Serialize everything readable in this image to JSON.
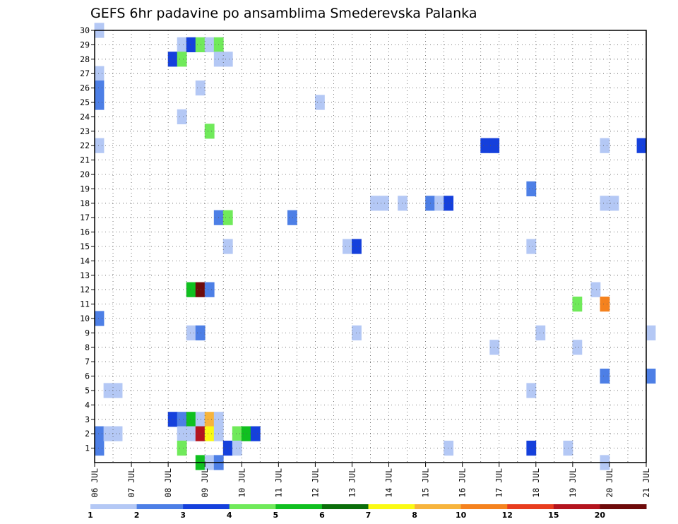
{
  "chart_data": {
    "type": "heatmap",
    "title": "GEFS 6hr padavine po ansamblima Smederevska Palanka",
    "xlabel": "",
    "ylabel": "",
    "x_ticks": [
      "06 JUL",
      "07 JUL",
      "08 JUL",
      "09 JUL",
      "10 JUL",
      "11 JUL",
      "12 JUL",
      "13 JUL",
      "14 JUL",
      "15 JUL",
      "16 JUL",
      "17 JUL",
      "18 JUL",
      "19 JUL",
      "20 JUL",
      "21 JUL"
    ],
    "x_range_days": [
      0,
      15
    ],
    "y_ticks": [
      1,
      2,
      3,
      4,
      5,
      6,
      7,
      8,
      9,
      10,
      11,
      12,
      13,
      14,
      15,
      16,
      17,
      18,
      19,
      20,
      21,
      22,
      23,
      24,
      25,
      26,
      27,
      28,
      29,
      30
    ],
    "y_range": [
      0,
      30
    ],
    "grid": true,
    "colorbar": {
      "labels": [
        "1",
        "2",
        "3",
        "4",
        "5",
        "6",
        "7",
        "8",
        "10",
        "12",
        "15",
        "20"
      ],
      "colors": [
        "#b4c8f5",
        "#4d7fe6",
        "#1540dc",
        "#70ea5a",
        "#10c020",
        "#0a6e0a",
        "#fafa14",
        "#f7b43c",
        "#f5821e",
        "#e83c1e",
        "#b4141e",
        "#6e0a0a"
      ]
    },
    "cells": [
      [
        0,
        30,
        0
      ],
      [
        0,
        27,
        0
      ],
      [
        0,
        26,
        1
      ],
      [
        0,
        25,
        1
      ],
      [
        0,
        22,
        0
      ],
      [
        0,
        10,
        1
      ],
      [
        0,
        2,
        1
      ],
      [
        0,
        1,
        1
      ],
      [
        0.25,
        5,
        0
      ],
      [
        0.5,
        5,
        0
      ],
      [
        0.25,
        2,
        0
      ],
      [
        0.5,
        2,
        0
      ],
      [
        2,
        28,
        2
      ],
      [
        2,
        3,
        2
      ],
      [
        2.25,
        29,
        0
      ],
      [
        2.25,
        28,
        3
      ],
      [
        2.25,
        24,
        0
      ],
      [
        2.25,
        3,
        1
      ],
      [
        2.25,
        2,
        0
      ],
      [
        2.25,
        1,
        3
      ],
      [
        2.5,
        29,
        2
      ],
      [
        2.5,
        12,
        4
      ],
      [
        2.5,
        3,
        4
      ],
      [
        2.5,
        2,
        0
      ],
      [
        2.5,
        9,
        0
      ],
      [
        2.75,
        29,
        3
      ],
      [
        2.75,
        26,
        0
      ],
      [
        2.75,
        12,
        11
      ],
      [
        2.75,
        9,
        1
      ],
      [
        2.75,
        3,
        0
      ],
      [
        2.75,
        2,
        10
      ],
      [
        2.75,
        0,
        4
      ],
      [
        3,
        29,
        0
      ],
      [
        3,
        23,
        3
      ],
      [
        3,
        12,
        1
      ],
      [
        3,
        3,
        7
      ],
      [
        3,
        2,
        6
      ],
      [
        3,
        0,
        0
      ],
      [
        3.25,
        29,
        3
      ],
      [
        3.25,
        28,
        0
      ],
      [
        3.25,
        17,
        1
      ],
      [
        3.25,
        3,
        0
      ],
      [
        3.25,
        2,
        0
      ],
      [
        3.25,
        0,
        1
      ],
      [
        3.5,
        28,
        0
      ],
      [
        3.5,
        17,
        3
      ],
      [
        3.5,
        15,
        0
      ],
      [
        3.5,
        1,
        2
      ],
      [
        3.75,
        2,
        3
      ],
      [
        3.75,
        1,
        0
      ],
      [
        4,
        2,
        4
      ],
      [
        4.25,
        2,
        2
      ],
      [
        5.25,
        17,
        1
      ],
      [
        6,
        25,
        0
      ],
      [
        6.75,
        15,
        0
      ],
      [
        7,
        15,
        2
      ],
      [
        7,
        9,
        0
      ],
      [
        7.5,
        18,
        0
      ],
      [
        7.75,
        18,
        0
      ],
      [
        8.25,
        18,
        0
      ],
      [
        9,
        18,
        1
      ],
      [
        9.25,
        18,
        0
      ],
      [
        9.5,
        18,
        2
      ],
      [
        9.5,
        1,
        0
      ],
      [
        10.5,
        22,
        2
      ],
      [
        10.75,
        22,
        2
      ],
      [
        10.75,
        8,
        0
      ],
      [
        11.75,
        19,
        1
      ],
      [
        11.75,
        15,
        0
      ],
      [
        11.75,
        5,
        0
      ],
      [
        11.75,
        1,
        2
      ],
      [
        12,
        9,
        0
      ],
      [
        12.75,
        1,
        0
      ],
      [
        13,
        11,
        3
      ],
      [
        13,
        8,
        0
      ],
      [
        13.5,
        12,
        0
      ],
      [
        13.75,
        22,
        0
      ],
      [
        13.75,
        18,
        0
      ],
      [
        13.75,
        11,
        8
      ],
      [
        13.75,
        6,
        1
      ],
      [
        13.75,
        0,
        0
      ],
      [
        14,
        18,
        0
      ],
      [
        14.75,
        22,
        2
      ],
      [
        15,
        9,
        0
      ],
      [
        15,
        6,
        1
      ]
    ]
  }
}
